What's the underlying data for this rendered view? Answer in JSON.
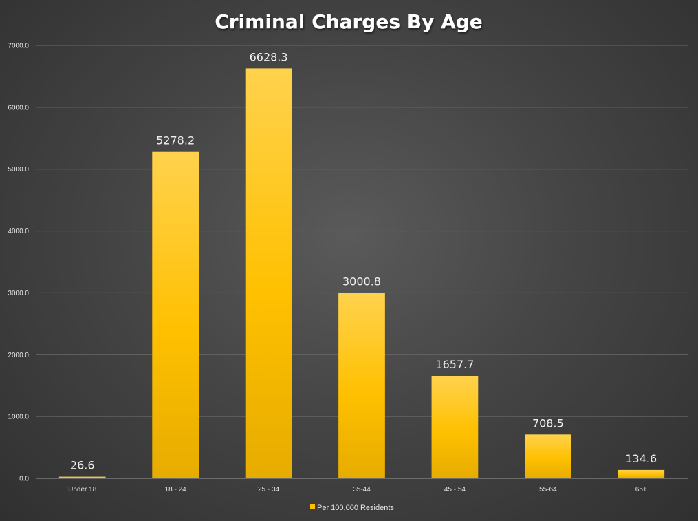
{
  "chart_data": {
    "type": "bar",
    "title": "Criminal Charges By Age",
    "categories": [
      "Under 18",
      "18 - 24",
      "25 - 34",
      "35-44",
      "45 - 54",
      "55-64",
      "65+"
    ],
    "series": [
      {
        "name": "Per 100,000 Residents",
        "values": [
          26.6,
          5278.2,
          6628.3,
          3000.8,
          1657.7,
          708.5,
          134.6
        ],
        "data_labels": [
          "26.6",
          "5278.2",
          "6628.3",
          "3000.8",
          "1657.7",
          "708.5",
          "134.6"
        ]
      }
    ],
    "y_ticks": [
      "0.0",
      "1000.0",
      "2000.0",
      "3000.0",
      "4000.0",
      "5000.0",
      "6000.0",
      "7000.0"
    ],
    "ylim": [
      0,
      7000
    ],
    "grid": true,
    "legend_position": "bottom",
    "colors": {
      "bar_top": "#ffd24d",
      "bar_mid": "#ffc000",
      "bar_bottom": "#e6ac00",
      "grid": "#6a6a6a",
      "axis": "#9a9a9a"
    }
  }
}
